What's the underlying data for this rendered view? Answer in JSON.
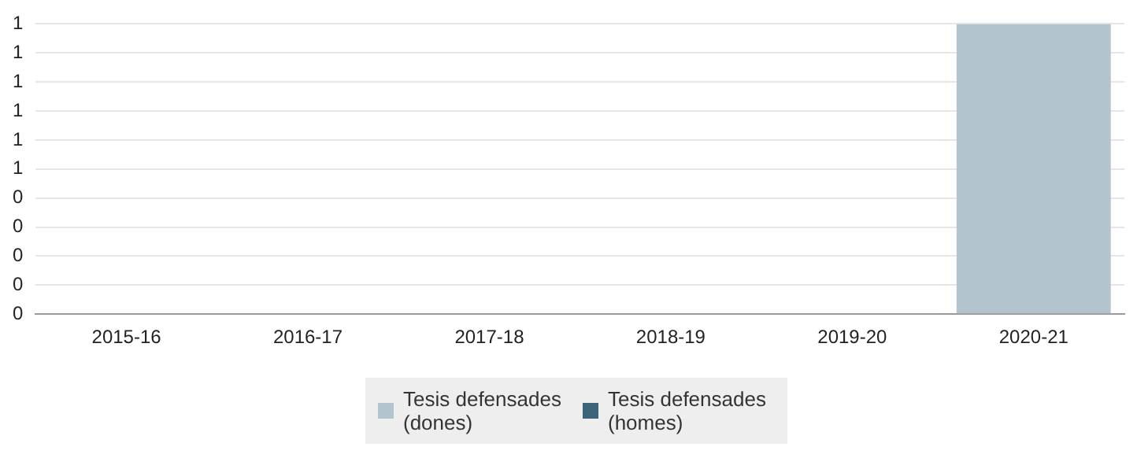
{
  "chart_data": {
    "type": "bar",
    "stacked": true,
    "categories": [
      "2015-16",
      "2016-17",
      "2017-18",
      "2018-19",
      "2019-20",
      "2020-21"
    ],
    "series": [
      {
        "name": "Tesis defensades (dones)",
        "color": "#b4c4ce",
        "values": [
          0,
          0,
          0,
          0,
          0,
          1
        ]
      },
      {
        "name": "Tesis defensades (homes)",
        "color": "#3c6478",
        "values": [
          0,
          0,
          0,
          0,
          0,
          0
        ]
      }
    ],
    "ylim": [
      0,
      1
    ],
    "yticks": [
      {
        "value": 0,
        "label": "0"
      },
      {
        "value": 0.1,
        "label": "0"
      },
      {
        "value": 0.2,
        "label": "0"
      },
      {
        "value": 0.3,
        "label": "0"
      },
      {
        "value": 0.4,
        "label": "0"
      },
      {
        "value": 0.5,
        "label": "1"
      },
      {
        "value": 0.6,
        "label": "1"
      },
      {
        "value": 0.7,
        "label": "1"
      },
      {
        "value": 0.8,
        "label": "1"
      },
      {
        "value": 0.9,
        "label": "1"
      },
      {
        "value": 1,
        "label": "1"
      }
    ],
    "grid": "y",
    "legend": "bottom"
  }
}
